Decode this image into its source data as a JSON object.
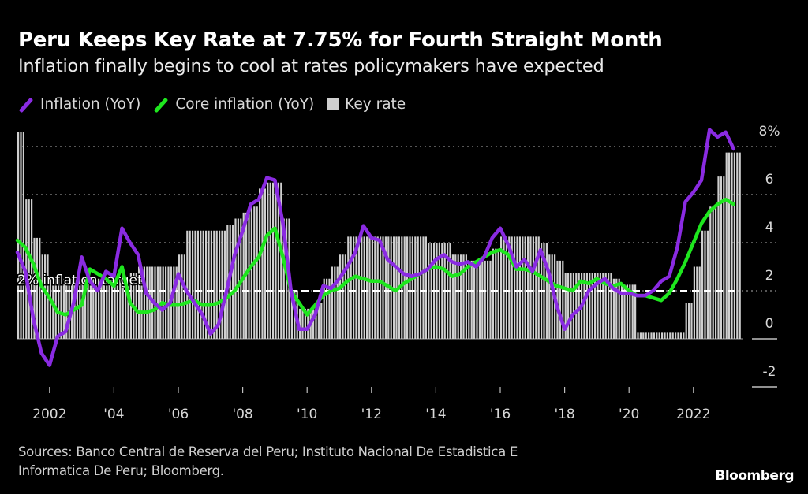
{
  "header": {
    "title": "Peru Keeps Key Rate at 7.75% for Fourth Straight Month",
    "subtitle": "Inflation finally begins to cool at rates policymakers have expected"
  },
  "legend": [
    {
      "label": "Inflation (YoY)",
      "kind": "line",
      "color": "#8a2be2"
    },
    {
      "label": "Core inflation (YoY)",
      "kind": "line",
      "color": "#1ee61e"
    },
    {
      "label": "Key rate",
      "kind": "bar",
      "color": "#cfcfcf"
    }
  ],
  "footer": {
    "source_line1": "Sources: Banco Central de Reserva del Peru; Instituto Nacional De Estadistica E",
    "source_line2": "Informatica De Peru; Bloomberg.",
    "brand": "Bloomberg"
  },
  "chart_data": {
    "type": "line",
    "title": "Peru Keeps Key Rate at 7.75% for Fourth Straight Month",
    "subtitle": "Inflation finally begins to cool at rates policymakers have expected",
    "xlabel": "",
    "ylabel": "",
    "xlim": [
      2001.0,
      2023.3
    ],
    "ylim": [
      -2,
      8
    ],
    "yticks": [
      -2,
      0,
      2,
      4,
      6,
      8
    ],
    "ytick_labels": [
      "-2",
      "0",
      "2",
      "4",
      "6",
      "8%"
    ],
    "xticks": [
      2002,
      2004,
      2006,
      2008,
      2010,
      2012,
      2014,
      2016,
      2018,
      2020,
      2022
    ],
    "xtick_labels": [
      "2002",
      "'04",
      "'06",
      "'08",
      "'10",
      "'12",
      "'14",
      "'16",
      "'18",
      "'20",
      "2022"
    ],
    "grid": "horizontal dotted",
    "legend_position": "top-left",
    "annotation": {
      "label": "2% inflation target",
      "y": 2
    },
    "series": [
      {
        "name": "Inflation (YoY)",
        "type": "line",
        "color": "#8a2be2",
        "x": [
          2001.0,
          2001.25,
          2001.5,
          2001.75,
          2002.0,
          2002.25,
          2002.5,
          2002.75,
          2003.0,
          2003.25,
          2003.5,
          2003.75,
          2004.0,
          2004.25,
          2004.5,
          2004.75,
          2005.0,
          2005.25,
          2005.5,
          2005.75,
          2006.0,
          2006.25,
          2006.5,
          2006.75,
          2007.0,
          2007.25,
          2007.5,
          2007.75,
          2008.0,
          2008.25,
          2008.5,
          2008.75,
          2009.0,
          2009.25,
          2009.5,
          2009.75,
          2010.0,
          2010.25,
          2010.5,
          2010.75,
          2011.0,
          2011.25,
          2011.5,
          2011.75,
          2012.0,
          2012.25,
          2012.5,
          2012.75,
          2013.0,
          2013.25,
          2013.5,
          2013.75,
          2014.0,
          2014.25,
          2014.5,
          2014.75,
          2015.0,
          2015.25,
          2015.5,
          2015.75,
          2016.0,
          2016.25,
          2016.5,
          2016.75,
          2017.0,
          2017.25,
          2017.5,
          2017.75,
          2018.0,
          2018.25,
          2018.5,
          2018.75,
          2019.0,
          2019.25,
          2019.5,
          2019.75,
          2020.0,
          2020.25,
          2020.5,
          2020.75,
          2021.0,
          2021.25,
          2021.5,
          2021.75,
          2022.0,
          2022.25,
          2022.5,
          2022.75,
          2023.0,
          2023.25
        ],
        "values": [
          3.6,
          2.8,
          0.8,
          -0.6,
          -1.1,
          0.1,
          0.3,
          1.5,
          3.4,
          2.4,
          2.0,
          2.8,
          2.6,
          4.6,
          4.0,
          3.5,
          1.9,
          1.5,
          1.2,
          1.5,
          2.7,
          2.0,
          1.5,
          1.0,
          0.2,
          0.6,
          2.0,
          3.5,
          4.5,
          5.6,
          5.8,
          6.7,
          6.6,
          4.8,
          2.0,
          0.4,
          0.4,
          1.0,
          2.2,
          2.1,
          2.5,
          3.0,
          3.6,
          4.7,
          4.2,
          4.1,
          3.3,
          3.0,
          2.7,
          2.6,
          2.7,
          2.9,
          3.3,
          3.5,
          3.2,
          3.1,
          3.2,
          3.0,
          3.4,
          4.2,
          4.6,
          3.9,
          3.0,
          3.3,
          2.8,
          3.7,
          2.8,
          1.4,
          0.4,
          1.0,
          1.3,
          2.0,
          2.3,
          2.5,
          2.1,
          1.9,
          1.9,
          1.8,
          1.8,
          2.0,
          2.4,
          2.6,
          3.8,
          5.7,
          6.1,
          6.6,
          8.7,
          8.4,
          8.6,
          7.9
        ]
      },
      {
        "name": "Core inflation (YoY)",
        "type": "line",
        "color": "#1ee61e",
        "x": [
          2001.0,
          2001.25,
          2001.5,
          2001.75,
          2002.0,
          2002.25,
          2002.5,
          2002.75,
          2003.0,
          2003.25,
          2003.5,
          2003.75,
          2004.0,
          2004.25,
          2004.5,
          2004.75,
          2005.0,
          2005.25,
          2005.5,
          2005.75,
          2006.0,
          2006.25,
          2006.5,
          2006.75,
          2007.0,
          2007.25,
          2007.5,
          2007.75,
          2008.0,
          2008.25,
          2008.5,
          2008.75,
          2009.0,
          2009.25,
          2009.5,
          2009.75,
          2010.0,
          2010.25,
          2010.5,
          2010.75,
          2011.0,
          2011.25,
          2011.5,
          2011.75,
          2012.0,
          2012.25,
          2012.5,
          2012.75,
          2013.0,
          2013.25,
          2013.5,
          2013.75,
          2014.0,
          2014.25,
          2014.5,
          2014.75,
          2015.0,
          2015.25,
          2015.5,
          2015.75,
          2016.0,
          2016.25,
          2016.5,
          2016.75,
          2017.0,
          2017.25,
          2017.5,
          2017.75,
          2018.0,
          2018.25,
          2018.5,
          2018.75,
          2019.0,
          2019.25,
          2019.5,
          2019.75,
          2020.0,
          2020.25,
          2020.5,
          2020.75,
          2021.0,
          2021.25,
          2021.5,
          2021.75,
          2022.0,
          2022.25,
          2022.5,
          2022.75,
          2023.0,
          2023.25
        ],
        "values": [
          4.1,
          3.8,
          3.1,
          2.2,
          1.7,
          1.1,
          1.0,
          1.2,
          1.4,
          2.9,
          2.7,
          2.5,
          2.2,
          3.0,
          1.5,
          1.1,
          1.1,
          1.2,
          1.5,
          1.4,
          1.4,
          1.5,
          1.6,
          1.4,
          1.4,
          1.5,
          1.7,
          2.0,
          2.5,
          3.0,
          3.4,
          4.3,
          4.6,
          3.4,
          2.0,
          1.5,
          1.0,
          1.4,
          1.8,
          2.0,
          2.1,
          2.4,
          2.6,
          2.5,
          2.4,
          2.4,
          2.2,
          2.0,
          2.3,
          2.5,
          2.7,
          2.9,
          3.0,
          2.9,
          2.6,
          2.7,
          3.0,
          3.2,
          3.4,
          3.6,
          3.7,
          3.5,
          2.9,
          2.9,
          2.8,
          2.6,
          2.4,
          2.2,
          2.1,
          2.0,
          2.4,
          2.3,
          2.5,
          2.3,
          2.2,
          2.3,
          2.0,
          1.8,
          1.8,
          1.7,
          1.6,
          1.9,
          2.5,
          3.2,
          4.0,
          4.8,
          5.3,
          5.6,
          5.8,
          5.6
        ]
      },
      {
        "name": "Key rate",
        "type": "bar",
        "color": "#cfcfcf",
        "x": [
          2001.0,
          2001.25,
          2001.5,
          2001.75,
          2002.0,
          2002.25,
          2002.5,
          2002.75,
          2003.0,
          2003.25,
          2003.5,
          2003.75,
          2004.0,
          2004.25,
          2004.5,
          2004.75,
          2005.0,
          2005.25,
          2005.5,
          2005.75,
          2006.0,
          2006.25,
          2006.5,
          2006.75,
          2007.0,
          2007.25,
          2007.5,
          2007.75,
          2008.0,
          2008.25,
          2008.5,
          2008.75,
          2009.0,
          2009.25,
          2009.5,
          2009.75,
          2010.0,
          2010.25,
          2010.5,
          2010.75,
          2011.0,
          2011.25,
          2011.5,
          2011.75,
          2012.0,
          2012.25,
          2012.5,
          2012.75,
          2013.0,
          2013.25,
          2013.5,
          2013.75,
          2014.0,
          2014.25,
          2014.5,
          2014.75,
          2015.0,
          2015.25,
          2015.5,
          2015.75,
          2016.0,
          2016.25,
          2016.5,
          2016.75,
          2017.0,
          2017.25,
          2017.5,
          2017.75,
          2018.0,
          2018.25,
          2018.5,
          2018.75,
          2019.0,
          2019.25,
          2019.5,
          2019.75,
          2020.0,
          2020.25,
          2020.5,
          2020.75,
          2021.0,
          2021.25,
          2021.5,
          2021.75,
          2022.0,
          2022.25,
          2022.5,
          2022.75,
          2023.0,
          2023.25
        ],
        "values": [
          8.6,
          5.8,
          4.2,
          3.5,
          2.5,
          2.5,
          2.5,
          2.5,
          2.5,
          2.5,
          2.5,
          2.5,
          2.5,
          2.5,
          2.75,
          3.0,
          3.0,
          3.0,
          3.0,
          3.0,
          3.5,
          4.5,
          4.5,
          4.5,
          4.5,
          4.5,
          4.75,
          5.0,
          5.25,
          5.5,
          6.25,
          6.5,
          6.5,
          5.0,
          2.0,
          1.25,
          1.25,
          1.5,
          2.5,
          3.0,
          3.5,
          4.25,
          4.25,
          4.25,
          4.25,
          4.25,
          4.25,
          4.25,
          4.25,
          4.25,
          4.25,
          4.0,
          4.0,
          4.0,
          3.5,
          3.5,
          3.25,
          3.25,
          3.25,
          3.75,
          4.25,
          4.25,
          4.25,
          4.25,
          4.25,
          4.0,
          3.5,
          3.25,
          2.75,
          2.75,
          2.75,
          2.75,
          2.75,
          2.75,
          2.5,
          2.25,
          2.25,
          0.25,
          0.25,
          0.25,
          0.25,
          0.25,
          0.25,
          1.5,
          3.0,
          4.5,
          5.5,
          6.75,
          7.75,
          7.75
        ]
      }
    ]
  }
}
